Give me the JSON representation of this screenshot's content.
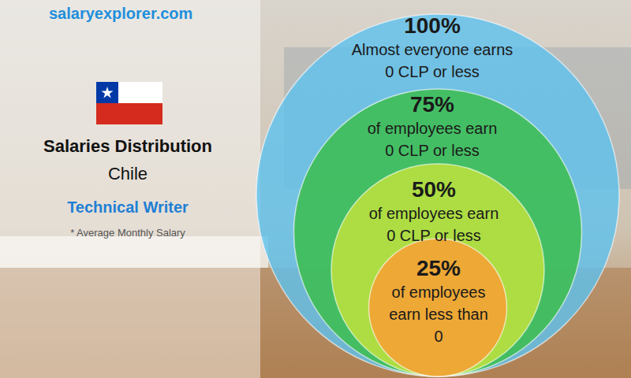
{
  "chart_data": {
    "type": "circles",
    "title": "Salaries Distribution",
    "subtitle": "Chile",
    "annotations": [
      "salaryexplorer.com",
      "Technical Writer",
      "* Average Monthly Salary"
    ],
    "values": [
      100,
      75,
      50,
      25
    ],
    "value_labels": [
      "100%",
      "75%",
      "50%",
      "25%"
    ],
    "descriptions": [
      [
        "Almost everyone earns"
      ],
      [
        "of employees earn"
      ],
      [
        "of employees earn"
      ],
      [
        "of employees",
        "earn less than"
      ]
    ],
    "salaries": [
      0,
      0,
      0,
      0
    ],
    "salary_labels": [
      "0 CLP or less",
      "0 CLP or less",
      "0 CLP or less",
      "0"
    ],
    "colors": [
      "#5ec2ef",
      "#3fbe55",
      "#b9e03f",
      "#f4a235"
    ],
    "data_labels": true
  }
}
